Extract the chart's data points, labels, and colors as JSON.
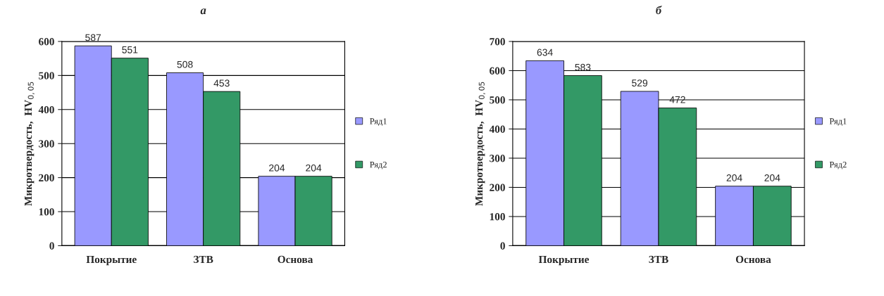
{
  "chart_data": [
    {
      "type": "bar",
      "title": "а",
      "ylabel": "Микротвердость,  HV$_{0,05}$",
      "categories": [
        "Покрытие",
        "ЗТВ",
        "Основа"
      ],
      "series": [
        {
          "name": "Ряд1",
          "color": "#9999ff",
          "values": [
            587,
            508,
            204
          ]
        },
        {
          "name": "Ряд2",
          "color": "#339966",
          "values": [
            551,
            453,
            204
          ]
        }
      ],
      "ylim": [
        0,
        600
      ],
      "yticks": [
        0,
        100,
        200,
        300,
        400,
        500,
        600
      ],
      "grid": "y",
      "legend": "right",
      "data_labels": true
    },
    {
      "type": "bar",
      "title": "б",
      "ylabel": "Микротвердость,  HV$_{0,05}$",
      "categories": [
        "Покрытие",
        "ЗТВ",
        "Основа"
      ],
      "series": [
        {
          "name": "Ряд1",
          "color": "#9999ff",
          "values": [
            634,
            529,
            204
          ]
        },
        {
          "name": "Ряд2",
          "color": "#339966",
          "values": [
            583,
            472,
            204
          ]
        }
      ],
      "ylim": [
        0,
        700
      ],
      "yticks": [
        0,
        100,
        200,
        300,
        400,
        500,
        600,
        700
      ],
      "grid": "y",
      "legend": "right",
      "data_labels": true
    }
  ]
}
